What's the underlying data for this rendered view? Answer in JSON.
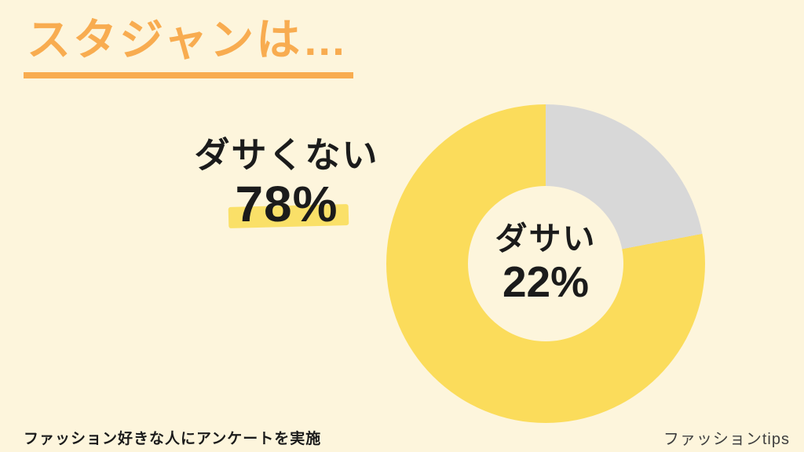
{
  "page": {
    "background": "#FDF5DC"
  },
  "title": {
    "text": "スタジャンは…",
    "color": "#F8AC50"
  },
  "annotation": {
    "label": "ダサくない",
    "value": "78%",
    "highlight_color": "#FAE068"
  },
  "chart_data": {
    "type": "pie",
    "donut": true,
    "start_angle_deg": 0,
    "direction": "clockwise",
    "title": "スタジャンは…",
    "segments": [
      {
        "label": "ダサい",
        "value": 22,
        "color": "#D8D8D8"
      },
      {
        "label": "ダサくない",
        "value": 78,
        "color": "#FBDC5B"
      }
    ],
    "center_label": {
      "label": "ダサい",
      "value": "22%"
    },
    "hole_color": "#FDF5DC",
    "legend": "none"
  },
  "footer": {
    "note": "ファッション好きな人にアンケートを実施",
    "brand": "ファッションtips"
  },
  "colors": {
    "background": "#FDF5DC",
    "title_orange": "#F8AC50",
    "donut_yellow": "#FBDC5B",
    "donut_gray": "#D8D8D8",
    "highlight_yellow": "#FAE068",
    "text_black": "#1B1B1B",
    "brand_gray": "#3F3F3F"
  }
}
